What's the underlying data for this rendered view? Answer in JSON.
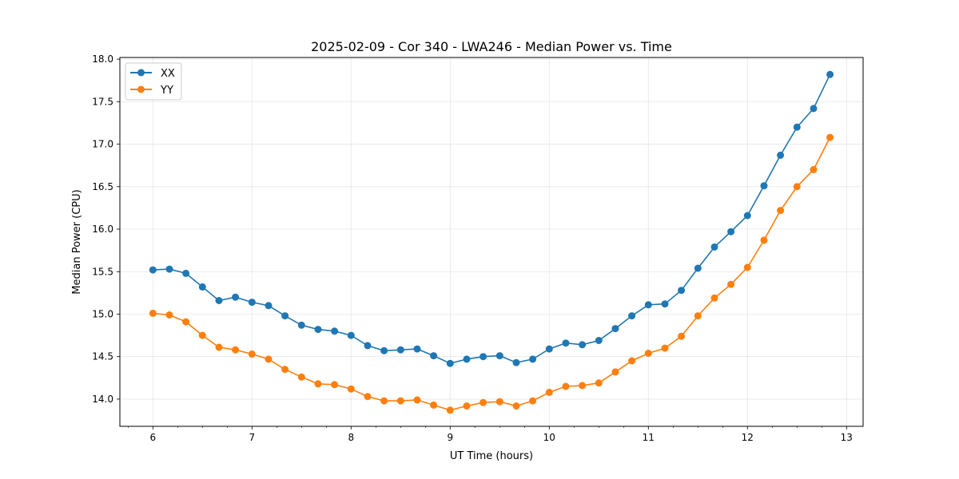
{
  "chart_data": {
    "type": "line",
    "title": "2025-02-09 - Cor 340 - LWA246 - Median Power vs. Time",
    "xlabel": "UT Time (hours)",
    "ylabel": "Median Power (CPU)",
    "xlim": [
      5.667,
      13.167
    ],
    "ylim": [
      13.68,
      18.02
    ],
    "xticks": [
      6,
      7,
      8,
      9,
      10,
      11,
      12,
      13
    ],
    "xtick_labels": [
      "6",
      "7",
      "8",
      "9",
      "10",
      "11",
      "12",
      "13"
    ],
    "yticks": [
      14.0,
      14.5,
      15.0,
      15.5,
      16.0,
      16.5,
      17.0,
      17.5,
      18.0
    ],
    "ytick_labels": [
      "14.0",
      "14.5",
      "15.0",
      "15.5",
      "16.0",
      "16.5",
      "17.0",
      "17.5",
      "18.0"
    ],
    "grid": true,
    "legend_position": "top-left",
    "x": [
      6.0,
      6.167,
      6.333,
      6.5,
      6.667,
      6.833,
      7.0,
      7.167,
      7.333,
      7.5,
      7.667,
      7.833,
      8.0,
      8.167,
      8.333,
      8.5,
      8.667,
      8.833,
      9.0,
      9.167,
      9.333,
      9.5,
      9.667,
      9.833,
      10.0,
      10.167,
      10.333,
      10.5,
      10.667,
      10.833,
      11.0,
      11.167,
      11.333,
      11.5,
      11.667,
      11.833,
      12.0,
      12.167,
      12.333,
      12.5,
      12.667,
      12.833
    ],
    "series": [
      {
        "name": "XX",
        "color": "#1f77b4",
        "values": [
          15.52,
          15.53,
          15.48,
          15.32,
          15.16,
          15.2,
          15.14,
          15.1,
          14.98,
          14.87,
          14.82,
          14.8,
          14.75,
          14.63,
          14.57,
          14.58,
          14.59,
          14.51,
          14.42,
          14.47,
          14.5,
          14.51,
          14.43,
          14.47,
          14.59,
          14.66,
          14.64,
          14.69,
          14.83,
          14.98,
          15.11,
          15.12,
          15.28,
          15.54,
          15.79,
          15.97,
          16.16,
          16.51,
          16.87,
          17.2,
          17.42,
          17.82
        ]
      },
      {
        "name": "YY",
        "color": "#ff7f0e",
        "values": [
          15.01,
          14.99,
          14.91,
          14.75,
          14.61,
          14.58,
          14.53,
          14.47,
          14.35,
          14.26,
          14.18,
          14.17,
          14.12,
          14.03,
          13.98,
          13.98,
          13.99,
          13.93,
          13.87,
          13.92,
          13.96,
          13.97,
          13.92,
          13.98,
          14.08,
          14.15,
          14.16,
          14.19,
          14.32,
          14.45,
          14.54,
          14.6,
          14.74,
          14.98,
          15.19,
          15.35,
          15.55,
          15.87,
          16.22,
          16.5,
          16.7,
          17.08
        ]
      }
    ]
  }
}
